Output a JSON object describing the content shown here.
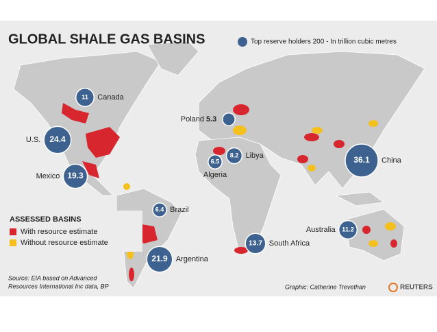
{
  "header": {
    "title": "GLOBAL SHALE GAS BASINS",
    "legend_label": "Top reserve holders 200 - In trillion cubic metres"
  },
  "countries": [
    {
      "name": "Canada",
      "value": 11
    },
    {
      "name": "U.S.",
      "value": 24.4
    },
    {
      "name": "Mexico",
      "value": 19.3
    },
    {
      "name": "Poland",
      "value": 5.3
    },
    {
      "name": "Libya",
      "value": 8.2
    },
    {
      "name": "Algeria",
      "value": 6.5
    },
    {
      "name": "China",
      "value": 36.1
    },
    {
      "name": "Brazil",
      "value": 6.4
    },
    {
      "name": "Argentina",
      "value": 21.9
    },
    {
      "name": "South Africa",
      "value": 13.7
    },
    {
      "name": "Australia",
      "value": 11.2
    }
  ],
  "basins_legend": {
    "title": "ASSESSED BASINS",
    "items": [
      {
        "label": "With resource estimate",
        "color": "#d7262e"
      },
      {
        "label": "Without resource estimate",
        "color": "#f4c01e"
      }
    ]
  },
  "footer": {
    "source": "Source: EIA based on Advanced",
    "source_2": "Resources International Inc data, BP",
    "credit": "Graphic: Catherine Trevethan",
    "brand": "REUTERS"
  }
}
